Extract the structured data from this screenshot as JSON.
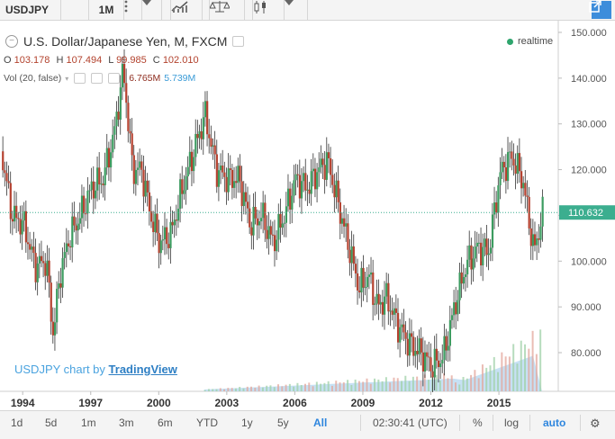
{
  "toolbar": {
    "symbol": "USDJPY",
    "interval": "1M",
    "icons": [
      "more-vertical-icon",
      "chevron-down-icon",
      "indicators-icon",
      "compare-icon",
      "candles-icon",
      "chevron-down-icon",
      "popout-icon"
    ]
  },
  "legend": {
    "title": "U.S. Dollar/Japanese Yen, M, FXCM",
    "o_label": "O",
    "o_value": "103.178",
    "h_label": "H",
    "h_value": "107.494",
    "l_label": "L",
    "l_value": "99.985",
    "c_label": "C",
    "c_value": "102.010",
    "vol_label": "Vol (20, false)",
    "vol_value1": "6.765M",
    "vol_value2": "5.739M",
    "realtime": "realtime"
  },
  "watermark": {
    "prefix": "USDJPY chart by",
    "brand": "TradingView"
  },
  "price_axis": {
    "ticks": [
      "150.000",
      "140.000",
      "130.000",
      "120.000",
      "110.000",
      "100.000",
      "90.000",
      "80.000"
    ],
    "current": "110.632"
  },
  "time_axis": {
    "ticks": [
      "1994",
      "1997",
      "2000",
      "2003",
      "2006",
      "2009",
      "2012",
      "2015"
    ]
  },
  "bottom_bar": {
    "ranges": [
      "1d",
      "5d",
      "1m",
      "3m",
      "6m",
      "YTD",
      "1y",
      "5y",
      "All"
    ],
    "active_range": "All",
    "clock": "02:30:41 (UTC)",
    "percent": "%",
    "log": "log",
    "auto": "auto"
  },
  "colors": {
    "up": "#3c9c60",
    "down": "#b5412f",
    "accent": "#2e86de",
    "current_tag": "#3cae8f",
    "volume": "#5aa8de"
  },
  "chart_data": {
    "type": "candlestick",
    "ylim": [
      72,
      152
    ],
    "series": [
      {
        "name": "USDJPY",
        "points": [
          [
            1993.0,
            124
          ],
          [
            1993.5,
            110
          ],
          [
            1994.0,
            108
          ],
          [
            1994.5,
            99
          ],
          [
            1995.0,
            100
          ],
          [
            1995.3,
            84
          ],
          [
            1995.6,
            97
          ],
          [
            1996.0,
            105
          ],
          [
            1996.5,
            110
          ],
          [
            1997.0,
            116
          ],
          [
            1997.5,
            118
          ],
          [
            1998.0,
            128
          ],
          [
            1998.4,
            142
          ],
          [
            1998.8,
            120
          ],
          [
            1999.2,
            120
          ],
          [
            1999.6,
            110
          ],
          [
            2000.0,
            104
          ],
          [
            2000.5,
            106
          ],
          [
            2001.0,
            116
          ],
          [
            2001.5,
            124
          ],
          [
            2002.0,
            132
          ],
          [
            2002.5,
            120
          ],
          [
            2003.0,
            118
          ],
          [
            2003.5,
            118
          ],
          [
            2004.0,
            108
          ],
          [
            2004.5,
            110
          ],
          [
            2005.0,
            104
          ],
          [
            2005.5,
            110
          ],
          [
            2006.0,
            118
          ],
          [
            2006.5,
            116
          ],
          [
            2007.0,
            120
          ],
          [
            2007.4,
            122
          ],
          [
            2007.9,
            112
          ],
          [
            2008.3,
            104
          ],
          [
            2008.8,
            94
          ],
          [
            2009.2,
            97
          ],
          [
            2009.6,
            90
          ],
          [
            2010.0,
            92
          ],
          [
            2010.5,
            86
          ],
          [
            2011.0,
            82
          ],
          [
            2011.5,
            80
          ],
          [
            2012.0,
            77
          ],
          [
            2012.5,
            79
          ],
          [
            2013.0,
            90
          ],
          [
            2013.5,
            99
          ],
          [
            2014.0,
            103
          ],
          [
            2014.5,
            102
          ],
          [
            2015.0,
            119
          ],
          [
            2015.5,
            123
          ],
          [
            2016.0,
            118
          ],
          [
            2016.5,
            102
          ],
          [
            2016.9,
            110.6
          ]
        ]
      }
    ]
  }
}
